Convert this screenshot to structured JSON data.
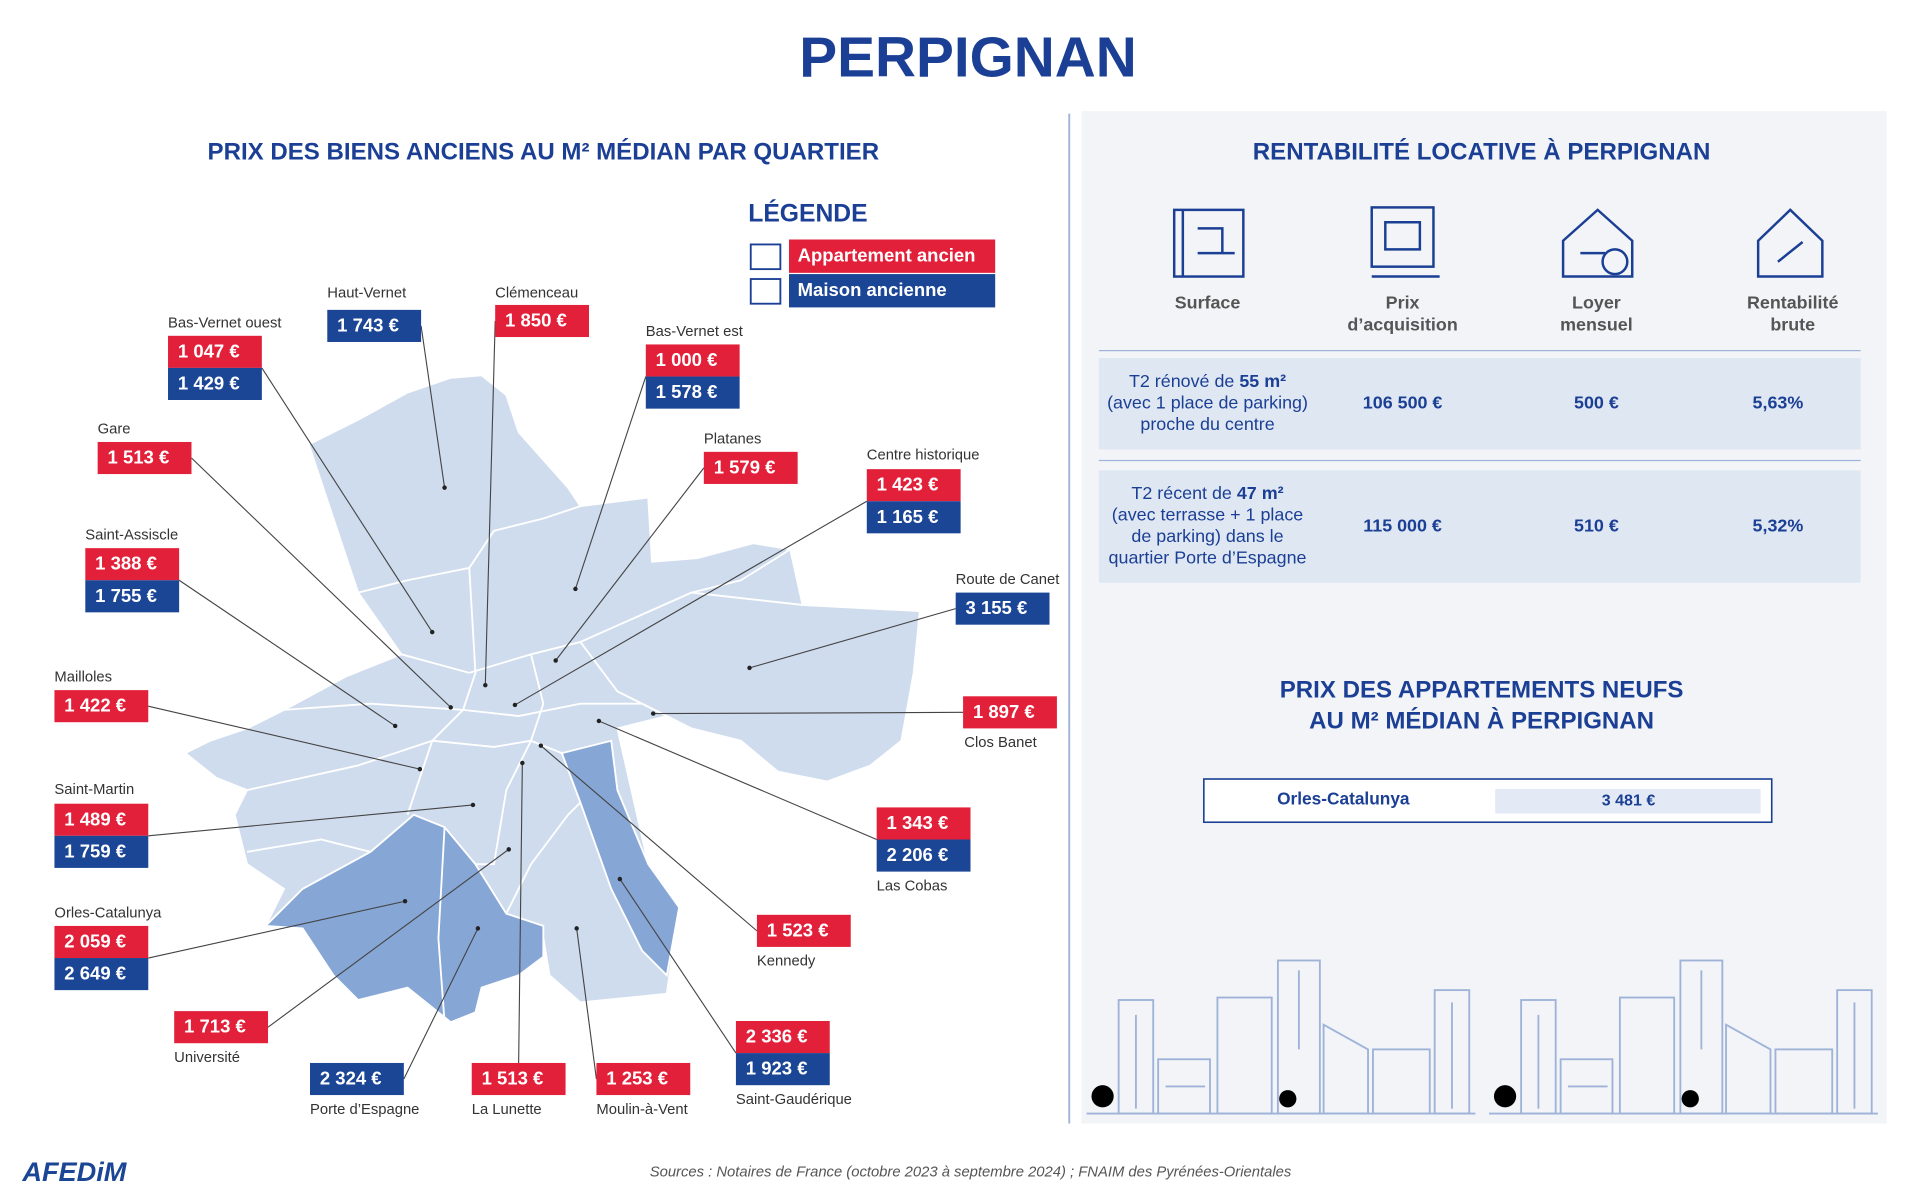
{
  "header": {
    "title": "PERPIGNAN"
  },
  "map": {
    "title": "PRIX DES BIENS ANCIENS AU M² MÉDIAN PAR QUARTIER",
    "legend": {
      "title": "LÉGENDE",
      "items": [
        "Appartement ancien",
        "Maison ancienne"
      ]
    },
    "districts": [
      {
        "name": "Haut-Vernet",
        "house": "1 743 €"
      },
      {
        "name": "Clémenceau",
        "apartment": "1 850 €"
      },
      {
        "name": "Bas-Vernet ouest",
        "apartment": "1 047 €",
        "house": "1 429 €"
      },
      {
        "name": "Bas-Vernet est",
        "apartment": "1 000 €",
        "house": "1 578 €"
      },
      {
        "name": "Gare",
        "apartment": "1 513 €"
      },
      {
        "name": "Platanes",
        "apartment": "1 579 €"
      },
      {
        "name": "Centre historique",
        "apartment": "1 423 €",
        "house": "1 165 €"
      },
      {
        "name": "Saint-Assiscle",
        "apartment": "1 388 €",
        "house": "1 755 €"
      },
      {
        "name": "Route de Canet",
        "house": "3 155 €"
      },
      {
        "name": "Mailloles",
        "apartment": "1 422 €"
      },
      {
        "name": "Clos Banet",
        "apartment": "1 897 €"
      },
      {
        "name": "Saint-Martin",
        "apartment": "1 489 €",
        "house": "1 759 €"
      },
      {
        "name": "Las Cobas",
        "apartment": "1 343 €",
        "house": "2 206 €"
      },
      {
        "name": "Orles-Catalunya",
        "apartment": "2 059 €",
        "house": "2 649 €"
      },
      {
        "name": "Kennedy",
        "apartment": "1 523 €"
      },
      {
        "name": "Université",
        "apartment": "1 713 €"
      },
      {
        "name": "Saint-Gaudérique",
        "apartment": "2 336 €",
        "house": "1 923 €"
      },
      {
        "name": "Porte d’Espagne",
        "house": "2 324 €"
      },
      {
        "name": "La Lunette",
        "apartment": "1 513 €"
      },
      {
        "name": "Moulin-à-Vent",
        "apartment": "1 253 €"
      }
    ]
  },
  "rent": {
    "title": "RENTABILITÉ LOCATIVE À PERPIGNAN",
    "headers": [
      [
        "Surface"
      ],
      [
        "Prix",
        "d’acquisition"
      ],
      [
        "Loyer",
        "mensuel"
      ],
      [
        "Rentabilité",
        "brute"
      ]
    ],
    "rows": [
      {
        "description": {
          "lead": "T2 rénové de ",
          "area": "55 m²",
          "lines": [
            "(avec 1 place de parking)",
            "proche du centre"
          ]
        },
        "price": "106 500 €",
        "rent": "500 €",
        "yield": "5,63%"
      },
      {
        "description": {
          "lead": "T2 récent de ",
          "area": "47 m²",
          "lines": [
            "(avec terrasse + 1 place",
            "de parking) dans le",
            "quartier Porte d’Espagne"
          ]
        },
        "price": "115 000 €",
        "rent": "510 €",
        "yield": "5,32%"
      }
    ]
  },
  "new": {
    "title": [
      "PRIX DES APPARTEMENTS NEUFS",
      "AU M² MÉDIAN À PERPIGNAN"
    ],
    "rows": [
      [
        "Orles-Catalunya",
        "3 481 €"
      ]
    ]
  },
  "footer": {
    "logo": "AFEDiM",
    "sources": "Sources : Notaires de France (octobre 2023 à septembre 2024) ; FNAIM des Pyrénées-Orientales"
  }
}
